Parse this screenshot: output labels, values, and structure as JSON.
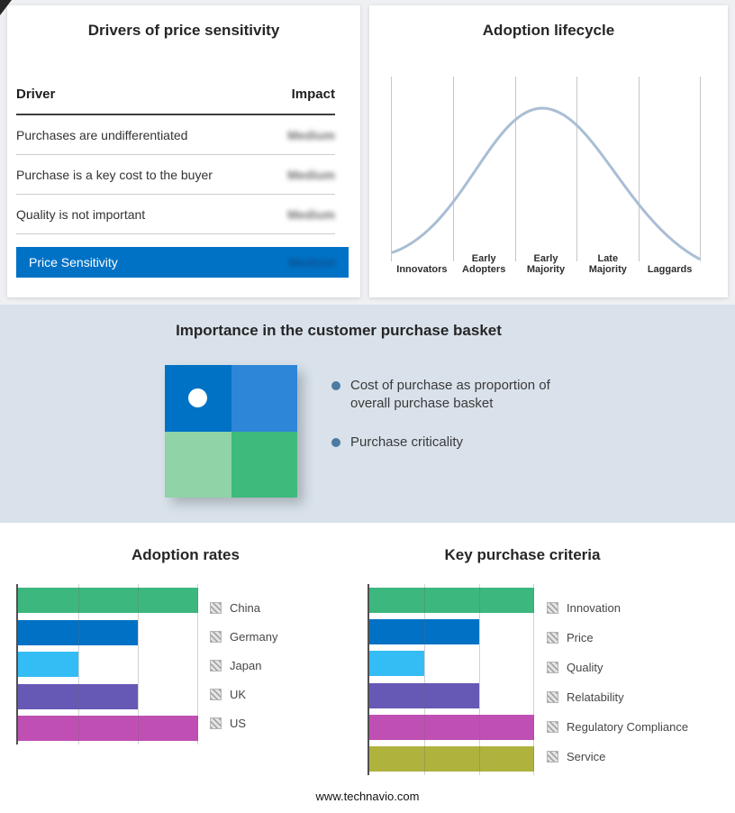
{
  "page": {
    "footer": "www.technavio.com"
  },
  "drivers_panel": {
    "title": "Drivers of price sensitivity",
    "columns": {
      "driver": "Driver",
      "impact": "Impact"
    },
    "rows": [
      {
        "driver": "Purchases are undifferentiated",
        "impact": "Medium"
      },
      {
        "driver": "Purchase is a key cost to the buyer",
        "impact": "Medium"
      },
      {
        "driver": "Quality is not important",
        "impact": "Medium"
      }
    ],
    "highlight_row": {
      "driver": "Price Sensitivity",
      "impact": "Medium"
    },
    "highlight_color": "#0072c6",
    "impact_values_blurred": true
  },
  "basket_panel": {
    "title": "Importance in the customer purchase basket",
    "bullets": [
      "Cost of purchase as proportion of overall purchase basket",
      "Purchase criticality"
    ],
    "bullet_color": "#4d7aa0",
    "quadrant_colors": [
      "#0072c6",
      "#2e86d8",
      "#8fd3a6",
      "#3eba7d"
    ]
  },
  "chart_data": [
    {
      "type": "line",
      "title": "Adoption lifecycle",
      "x": [
        "Innovators",
        "Early Adopters",
        "Early Majority",
        "Late Majority",
        "Laggards"
      ],
      "curve": "bell",
      "peak_stage": "Early Majority",
      "y_relative": [
        0.05,
        0.6,
        1.0,
        0.6,
        0.04
      ],
      "grid": "vertical section dividers",
      "line_color": "#a9bed4",
      "legend": "none"
    },
    {
      "type": "bar",
      "title": "Adoption rates",
      "orientation": "horizontal",
      "categories": [
        "China",
        "Germany",
        "Japan",
        "UK",
        "US"
      ],
      "values": [
        3,
        2,
        1,
        2,
        3
      ],
      "xlim": [
        0,
        3
      ],
      "colors": [
        "#3cb87e",
        "#0071c5",
        "#33bdf4",
        "#6659b5",
        "#c04fb4"
      ],
      "grid": true,
      "legend_position": "right"
    },
    {
      "type": "bar",
      "title": "Key purchase criteria",
      "orientation": "horizontal",
      "categories": [
        "Innovation",
        "Price",
        "Quality",
        "Relatability",
        "Regulatory Compliance",
        "Service"
      ],
      "values": [
        3,
        2,
        1,
        2,
        3,
        3
      ],
      "xlim": [
        0,
        3
      ],
      "colors": [
        "#3cb87e",
        "#0071c5",
        "#33bdf4",
        "#6659b5",
        "#c04fb4",
        "#b0b23e"
      ],
      "grid": true,
      "legend_position": "right"
    }
  ]
}
